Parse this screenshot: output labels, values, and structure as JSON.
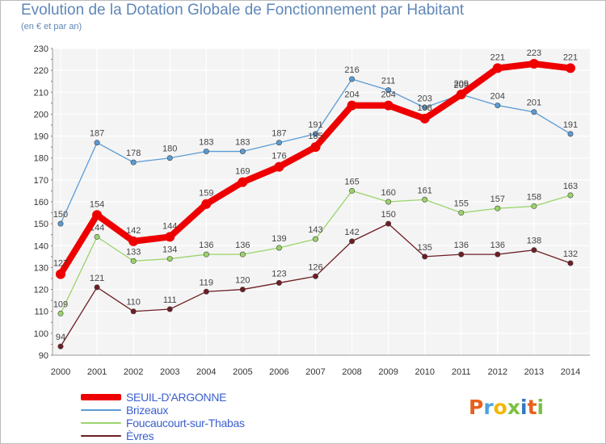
{
  "header": {
    "title": "Evolution de la Dotation Globale de Fonctionnement par Habitant",
    "subtitle": "(en € et par an)"
  },
  "logo": {
    "letters": [
      "P",
      "r",
      "o",
      "x",
      "i",
      "t",
      "i"
    ],
    "colors": [
      "#e8601c",
      "#4aa3df",
      "#f2b705",
      "#7bc143",
      "#2f78c4",
      "#e8601c",
      "#7bc143"
    ]
  },
  "chart_data": {
    "type": "line",
    "x": [
      2000,
      2001,
      2002,
      2003,
      2004,
      2005,
      2006,
      2007,
      2008,
      2009,
      2010,
      2011,
      2012,
      2013,
      2014
    ],
    "ylim": [
      90,
      230
    ],
    "yticks": [
      90,
      100,
      110,
      120,
      130,
      140,
      150,
      160,
      170,
      180,
      190,
      200,
      210,
      220,
      230
    ],
    "grid": true,
    "legend_position": "bottom-left",
    "series": [
      {
        "name": "Brizeaux",
        "color": "#5b9bd5",
        "emphasis": false,
        "labels": "above",
        "values": [
          150,
          187,
          178,
          180,
          183,
          183,
          187,
          191,
          216,
          211,
          203,
          209,
          204,
          201,
          191
        ]
      },
      {
        "name": "Foucaucourt-sur-Thabas",
        "color": "#9bd46a",
        "emphasis": false,
        "labels": "above",
        "values": [
          109,
          144,
          133,
          134,
          136,
          136,
          139,
          143,
          165,
          160,
          161,
          155,
          157,
          158,
          163
        ]
      },
      {
        "name": "Èvres",
        "color": "#6e1e24",
        "emphasis": false,
        "labels": "above",
        "values": [
          94,
          121,
          110,
          111,
          119,
          120,
          123,
          126,
          142,
          150,
          135,
          136,
          136,
          138,
          132
        ]
      },
      {
        "name": "SEUIL-D'ARGONNE",
        "color": "#ee0000",
        "emphasis": true,
        "labels": "above",
        "values": [
          127,
          154,
          142,
          144,
          159,
          169,
          176,
          185,
          204,
          204,
          198,
          209,
          221,
          223,
          221
        ]
      }
    ],
    "legend_order": [
      "SEUIL-D'ARGONNE",
      "Brizeaux",
      "Foucaucourt-sur-Thabas",
      "Èvres"
    ]
  }
}
